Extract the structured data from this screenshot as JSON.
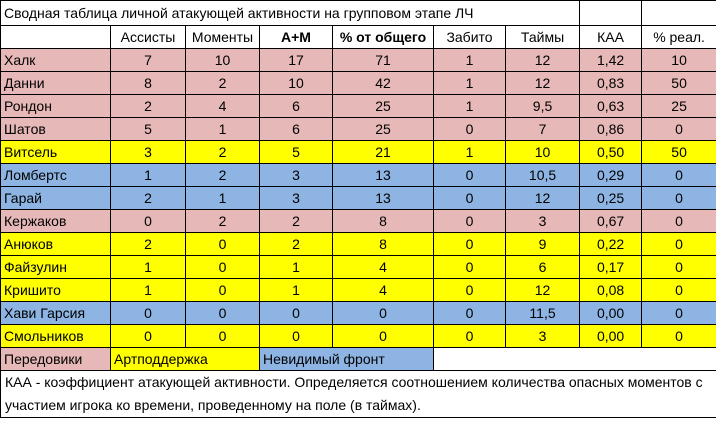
{
  "title": "Сводная таблица личной атакующей активности на групповом этапе ЛЧ",
  "headers": [
    "",
    "Ассисты",
    "Моменты",
    "А+М",
    "% от общего",
    "Забито",
    "Таймы",
    "КАА",
    "% реал."
  ],
  "colors": {
    "pink": "#e6b8b7",
    "yellow": "#ffff00",
    "blue": "#8db4e2"
  },
  "rows": [
    {
      "group": "pink",
      "cells": [
        "Халк",
        "7",
        "10",
        "17",
        "71",
        "1",
        "12",
        "1,42",
        "10"
      ]
    },
    {
      "group": "pink",
      "cells": [
        "Данни",
        "8",
        "2",
        "10",
        "42",
        "1",
        "12",
        "0,83",
        "50"
      ]
    },
    {
      "group": "pink",
      "cells": [
        "Рондон",
        "2",
        "4",
        "6",
        "25",
        "1",
        "9,5",
        "0,63",
        "25"
      ]
    },
    {
      "group": "pink",
      "cells": [
        "Шатов",
        "5",
        "1",
        "6",
        "25",
        "0",
        "7",
        "0,86",
        "0"
      ]
    },
    {
      "group": "yellow",
      "cells": [
        "Витсель",
        "3",
        "2",
        "5",
        "21",
        "1",
        "10",
        "0,50",
        "50"
      ]
    },
    {
      "group": "blue",
      "cells": [
        "Ломбертс",
        "1",
        "2",
        "3",
        "13",
        "0",
        "10,5",
        "0,29",
        "0"
      ]
    },
    {
      "group": "blue",
      "cells": [
        "Гарай",
        "2",
        "1",
        "3",
        "13",
        "0",
        "12",
        "0,25",
        "0"
      ]
    },
    {
      "group": "pink",
      "cells": [
        "Кержаков",
        "0",
        "2",
        "2",
        "8",
        "0",
        "3",
        "0,67",
        "0"
      ]
    },
    {
      "group": "yellow",
      "cells": [
        "Анюков",
        "2",
        "0",
        "2",
        "8",
        "0",
        "9",
        "0,22",
        "0"
      ]
    },
    {
      "group": "yellow",
      "cells": [
        "Файзулин",
        "1",
        "0",
        "1",
        "4",
        "0",
        "6",
        "0,17",
        "0"
      ]
    },
    {
      "group": "yellow",
      "cells": [
        "Кришито",
        "1",
        "0",
        "1",
        "4",
        "0",
        "12",
        "0,08",
        "0"
      ]
    },
    {
      "group": "blue",
      "cells": [
        "Хави Гарсия",
        "0",
        "0",
        "0",
        "0",
        "0",
        "11,5",
        "0,00",
        "0"
      ]
    },
    {
      "group": "yellow",
      "cells": [
        "Смольников",
        "0",
        "0",
        "0",
        "0",
        "0",
        "3",
        "0,00",
        "0"
      ]
    }
  ],
  "legend": {
    "pink": "Передовики",
    "yellow": "Артподдержка",
    "blue": "Невидимый фронт"
  },
  "note": "КАА - коэффициент атакующей активности. Определяется соотношением количества опасных моментов с участием игрока ко времени, проведенному на поле (в таймах)."
}
